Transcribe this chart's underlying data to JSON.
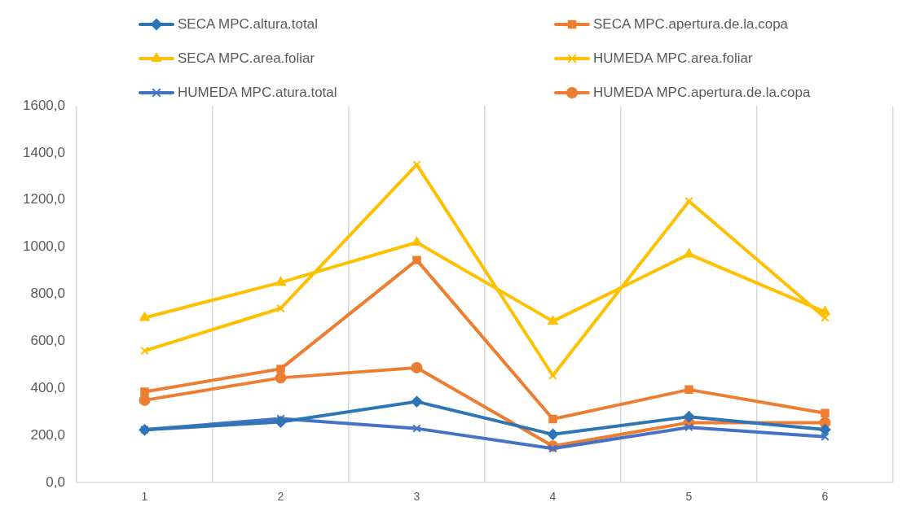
{
  "chart_data": {
    "type": "line",
    "categories": [
      "1",
      "2",
      "3",
      "4",
      "5",
      "6"
    ],
    "series": [
      {
        "name": "SECA MPC.altura.total",
        "color": "#2e75b6",
        "marker": "diamond",
        "values": [
          224,
          258,
          344,
          205,
          280,
          225
        ]
      },
      {
        "name": "SECA MPC.apertura.de.la.copa",
        "color": "#ed7d31",
        "marker": "square",
        "values": [
          386,
          483,
          945,
          270,
          395,
          295
        ]
      },
      {
        "name": "SECA MPC.area.foliar",
        "color": "#ffc000",
        "marker": "triangle",
        "values": [
          700,
          850,
          1020,
          685,
          970,
          725
        ]
      },
      {
        "name": "HUMEDA MPC.area.foliar",
        "color": "#ffc000",
        "marker": "cross",
        "values": [
          560,
          740,
          1350,
          455,
          1195,
          700
        ]
      },
      {
        "name": "HUMEDA MPC.atura.total",
        "color": "#4472c4",
        "marker": "cross",
        "values": [
          225,
          272,
          230,
          145,
          235,
          195
        ]
      },
      {
        "name": "HUMEDA MPC.apertura.de.la.copa",
        "color": "#ed7d31",
        "marker": "circle",
        "values": [
          350,
          445,
          488,
          155,
          255,
          255
        ]
      }
    ],
    "ylim": [
      0,
      1600
    ],
    "yticks": [
      {
        "value": 0,
        "label": "0,0"
      },
      {
        "value": 200,
        "label": "200,0"
      },
      {
        "value": 400,
        "label": "400,0"
      },
      {
        "value": 600,
        "label": "600,0"
      },
      {
        "value": 800,
        "label": "800,0"
      },
      {
        "value": 1000,
        "label": "1000,0"
      },
      {
        "value": 1200,
        "label": "1200,0"
      },
      {
        "value": 1400,
        "label": "1400,0"
      },
      {
        "value": 1600,
        "label": "1600,0"
      }
    ],
    "grid": "x",
    "legend": "top",
    "line_style": "solid"
  }
}
